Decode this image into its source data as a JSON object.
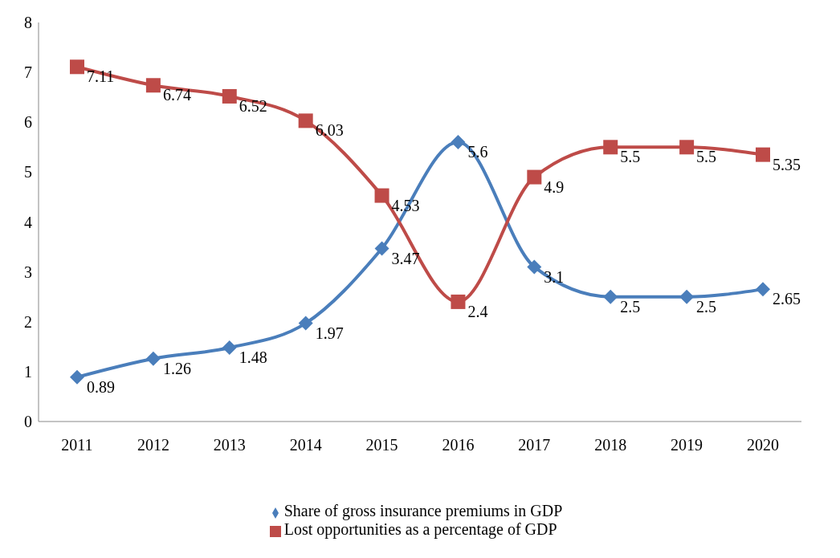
{
  "chart_data": {
    "type": "line",
    "categories": [
      "2011",
      "2012",
      "2013",
      "2014",
      "2015",
      "2016",
      "2017",
      "2018",
      "2019",
      "2020"
    ],
    "series": [
      {
        "name": "Share of gross insurance premiums in GDP",
        "color": "#4a7ebb",
        "marker": "diamond",
        "values": [
          0.89,
          1.26,
          1.48,
          1.97,
          3.47,
          5.6,
          3.1,
          2.5,
          2.5,
          2.65
        ]
      },
      {
        "name": "Lost opportunities as a percentage of GDP",
        "color": "#be4b48",
        "marker": "square",
        "values": [
          7.11,
          6.74,
          6.52,
          6.03,
          4.53,
          2.4,
          4.9,
          5.5,
          5.5,
          5.35
        ]
      }
    ],
    "ylim": [
      0,
      8
    ],
    "yticks": [
      0,
      1,
      2,
      3,
      4,
      5,
      6,
      7,
      8
    ],
    "grid": false,
    "legend": "bottom",
    "data_labels": true
  }
}
